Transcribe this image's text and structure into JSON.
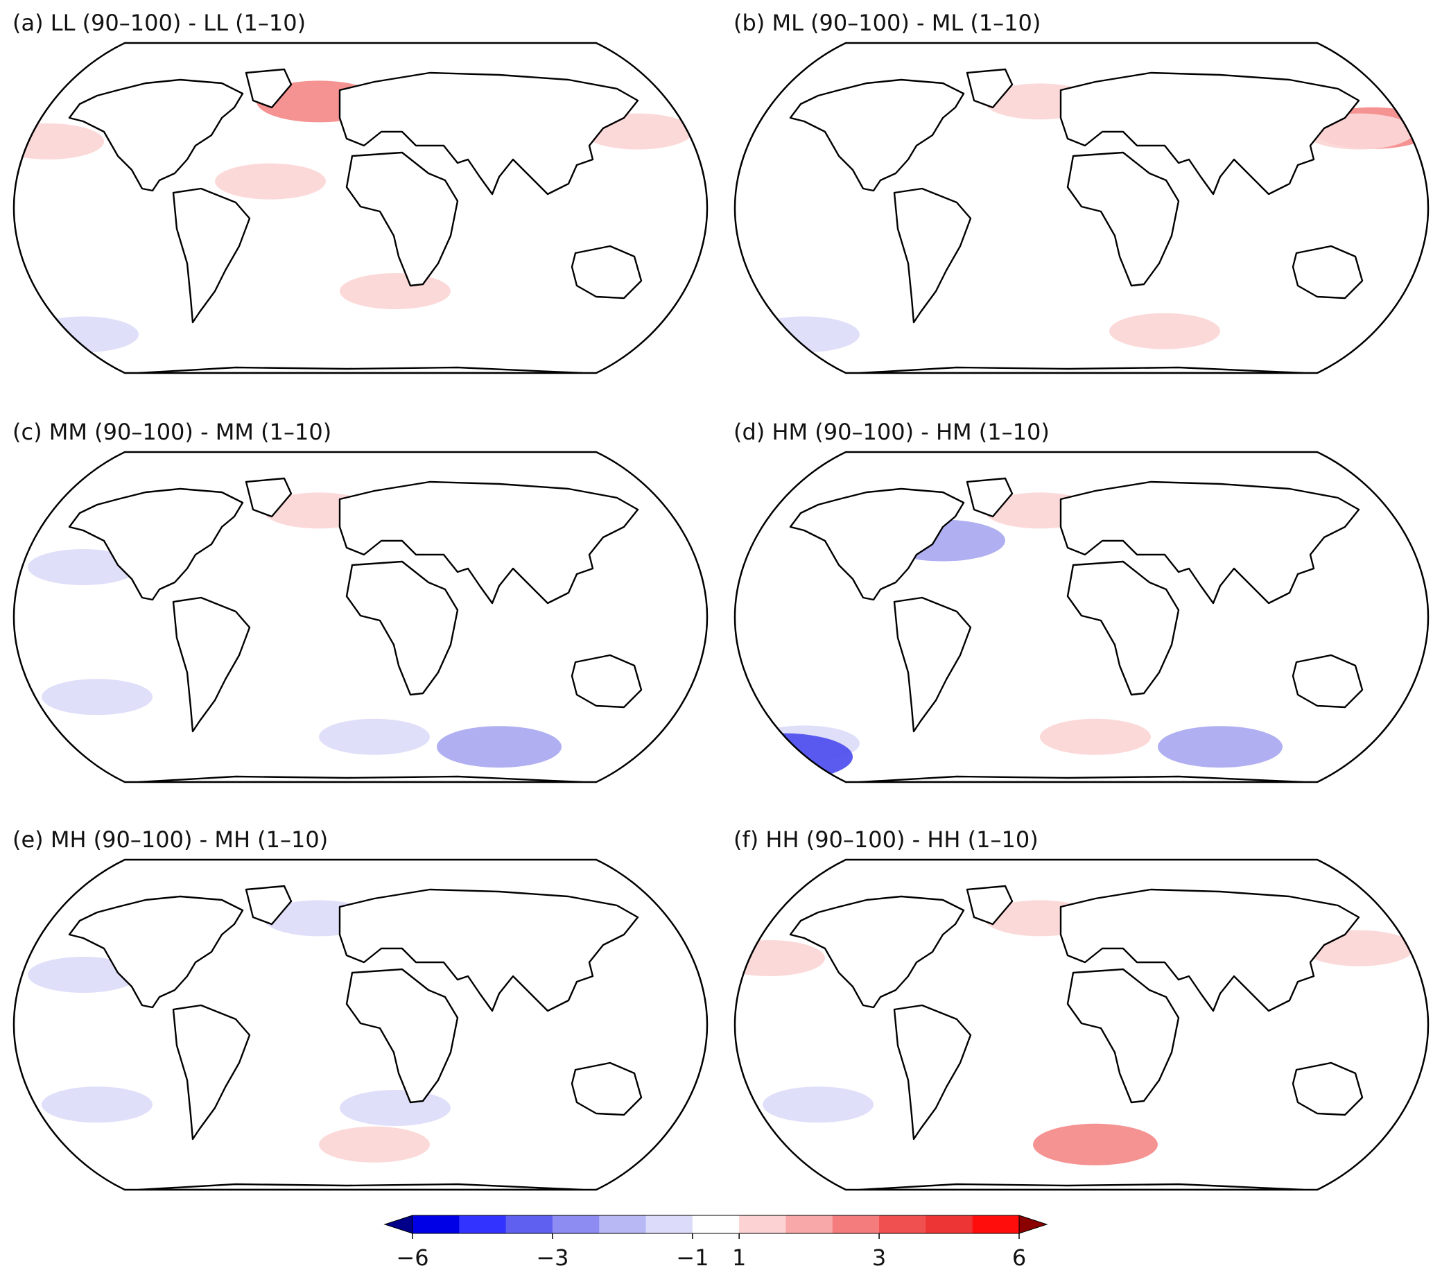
{
  "panels": [
    {
      "id": "a",
      "title": "(a) LL (90–100) - LL (1–10)",
      "anomalies": [
        {
          "region": "North Atlantic",
          "sign": "positive",
          "level": 2
        },
        {
          "region": "Subtropical North Atlantic",
          "sign": "positive",
          "level": 1
        },
        {
          "region": "North Pacific west",
          "sign": "positive",
          "level": 1
        },
        {
          "region": "North Pacific east",
          "sign": "positive",
          "level": 1
        },
        {
          "region": "Southeast Pacific",
          "sign": "negative",
          "level": 1
        },
        {
          "region": "South Indian Ocean",
          "sign": "positive",
          "level": 1
        }
      ]
    },
    {
      "id": "b",
      "title": "(b) ML (90–100) - ML (1–10)",
      "anomalies": [
        {
          "region": "North Atlantic",
          "sign": "positive",
          "level": 1
        },
        {
          "region": "Kuroshio Extension",
          "sign": "positive",
          "level": 2
        },
        {
          "region": "North Pacific east",
          "sign": "positive",
          "level": 1
        },
        {
          "region": "South Atlantic / Indian",
          "sign": "positive",
          "level": 1
        },
        {
          "region": "Southeast Pacific",
          "sign": "negative",
          "level": 1
        }
      ]
    },
    {
      "id": "c",
      "title": "(c) MM (90–100) - MM (1–10)",
      "anomalies": [
        {
          "region": "Southern Ocean Indian sector",
          "sign": "negative",
          "level": 2
        },
        {
          "region": "South Pacific",
          "sign": "negative",
          "level": 1
        },
        {
          "region": "South Atlantic",
          "sign": "negative",
          "level": 1
        },
        {
          "region": "North Pacific",
          "sign": "negative",
          "level": 1
        },
        {
          "region": "North Atlantic",
          "sign": "positive",
          "level": 1
        }
      ]
    },
    {
      "id": "d",
      "title": "(d) HM (90–100) - HM (1–10)",
      "anomalies": [
        {
          "region": "Southeast Pacific",
          "sign": "negative",
          "level": 1
        },
        {
          "region": "Southern Ocean Pacific sector",
          "sign": "negative",
          "level": 3
        },
        {
          "region": "Southern Ocean Indian sector",
          "sign": "negative",
          "level": 2
        },
        {
          "region": "South Atlantic",
          "sign": "positive",
          "level": 1
        },
        {
          "region": "North Atlantic",
          "sign": "positive",
          "level": 1
        },
        {
          "region": "Gulf Stream",
          "sign": "negative",
          "level": 2
        }
      ]
    },
    {
      "id": "e",
      "title": "(e) MH (90–100) - MH (1–10)",
      "anomalies": [
        {
          "region": "North Atlantic",
          "sign": "negative",
          "level": 1
        },
        {
          "region": "North Pacific",
          "sign": "negative",
          "level": 1
        },
        {
          "region": "South Atlantic",
          "sign": "positive",
          "level": 1
        },
        {
          "region": "South Indian Ocean",
          "sign": "negative",
          "level": 1
        },
        {
          "region": "South Pacific",
          "sign": "negative",
          "level": 1
        }
      ]
    },
    {
      "id": "f",
      "title": "(f) HH (90–100) - HH (1–10)",
      "anomalies": [
        {
          "region": "North Pacific west",
          "sign": "positive",
          "level": 1
        },
        {
          "region": "North Pacific east",
          "sign": "positive",
          "level": 1
        },
        {
          "region": "South Atlantic",
          "sign": "positive",
          "level": 2
        },
        {
          "region": "South Pacific",
          "sign": "negative",
          "level": 1
        },
        {
          "region": "North Atlantic",
          "sign": "positive",
          "level": 1
        }
      ]
    }
  ],
  "colorbar": {
    "min": -6,
    "max": 6,
    "extend": "both",
    "ticks": [
      {
        "value": -6,
        "label": "−6"
      },
      {
        "value": -3,
        "label": "−3"
      },
      {
        "value": -1,
        "label": "−1"
      },
      {
        "value": 1,
        "label": "1"
      },
      {
        "value": 3,
        "label": "3"
      },
      {
        "value": 6,
        "label": "6"
      }
    ],
    "colors": [
      "#0000e6",
      "#3333ff",
      "#5f5ff0",
      "#8c8cf2",
      "#b8b8f5",
      "#dcdcfa",
      "#ffffff",
      "#fcd2d2",
      "#f8a8a8",
      "#f47c7c",
      "#f05050",
      "#ee3535",
      "#ff0d0d"
    ],
    "end_colors": [
      "#00008b",
      "#8b0000"
    ]
  }
}
